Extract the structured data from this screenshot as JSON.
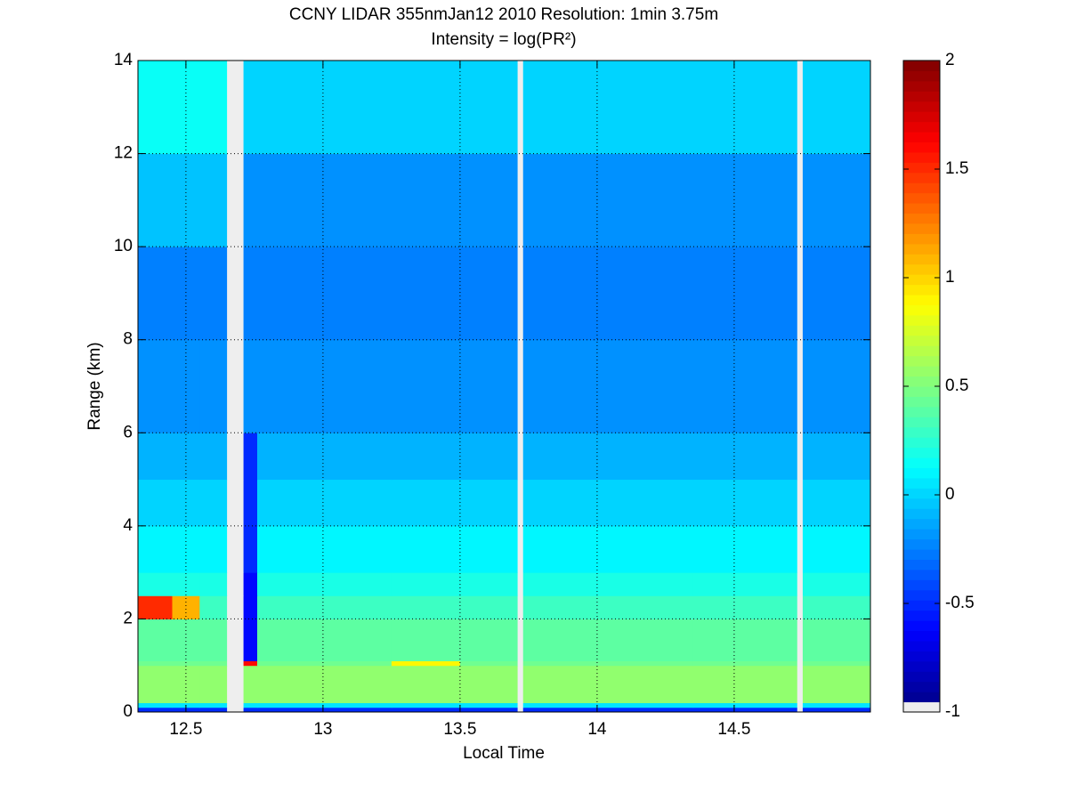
{
  "chart_data": {
    "type": "heatmap",
    "title": "CCNY LIDAR 355nmJan12 2010 Resolution: 1min 3.75m",
    "subtitle": "Intensity = log(PR²)",
    "x_label": "Local Time",
    "y_label": "Range (km)",
    "xlim": [
      12.325,
      14.997
    ],
    "ylim": [
      0,
      14
    ],
    "xticks": [
      12.5,
      13,
      13.5,
      14,
      14.5
    ],
    "yticks": [
      0,
      2,
      4,
      6,
      8,
      10,
      12,
      14
    ],
    "grid": true,
    "colormap": "jet",
    "clim": [
      -1,
      2
    ],
    "cticks": [
      -1,
      -0.5,
      0,
      0.5,
      1,
      1.5,
      2
    ],
    "null_color": "#eeeeee",
    "xbins": [
      12.325,
      12.45,
      12.55,
      12.65,
      12.71,
      12.76,
      13.0,
      13.25,
      13.5,
      13.71,
      13.73,
      14.0,
      14.35,
      14.73,
      14.75,
      14.997
    ],
    "ybins": [
      0,
      0.1,
      0.2,
      1.0,
      1.1,
      2.0,
      2.5,
      3,
      4,
      5,
      6,
      8,
      10,
      12,
      14
    ],
    "values": [
      [
        -0.5,
        -0.5,
        -0.5,
        null,
        -0.5,
        -0.5,
        -0.5,
        -0.5,
        -0.5,
        null,
        -0.5,
        -0.5,
        -0.5,
        null,
        -0.5
      ],
      [
        0.05,
        0.05,
        0.05,
        null,
        0.05,
        0.05,
        0.05,
        0.05,
        0.05,
        null,
        0.05,
        0.05,
        0.05,
        null,
        0.05
      ],
      [
        0.55,
        0.55,
        0.55,
        null,
        0.55,
        0.55,
        0.55,
        0.55,
        0.55,
        null,
        0.55,
        0.55,
        0.55,
        null,
        0.55
      ],
      [
        0.45,
        0.45,
        0.45,
        null,
        1.6,
        0.45,
        0.45,
        0.9,
        0.45,
        null,
        0.45,
        0.45,
        0.45,
        null,
        0.45
      ],
      [
        0.4,
        0.4,
        0.4,
        null,
        -0.6,
        0.4,
        0.4,
        0.4,
        0.4,
        null,
        0.4,
        0.4,
        0.4,
        null,
        0.4
      ],
      [
        1.5,
        1.1,
        0.3,
        null,
        -0.6,
        0.3,
        0.3,
        0.3,
        0.3,
        null,
        0.3,
        0.3,
        0.3,
        null,
        0.3
      ],
      [
        0.2,
        0.2,
        0.2,
        null,
        -0.6,
        0.2,
        0.2,
        0.2,
        0.2,
        null,
        0.2,
        0.2,
        0.2,
        null,
        0.2
      ],
      [
        0.1,
        0.1,
        0.1,
        null,
        -0.5,
        0.1,
        0.1,
        0.1,
        0.1,
        null,
        0.1,
        0.1,
        0.1,
        null,
        0.1
      ],
      [
        0.0,
        0.0,
        0.0,
        null,
        -0.5,
        0.0,
        0.0,
        0.0,
        0.0,
        null,
        0.0,
        0.0,
        0.0,
        null,
        0.0
      ],
      [
        -0.1,
        -0.1,
        -0.1,
        null,
        -0.5,
        -0.1,
        -0.1,
        -0.1,
        -0.1,
        null,
        -0.1,
        -0.1,
        -0.1,
        null,
        -0.1
      ],
      [
        -0.2,
        -0.2,
        -0.2,
        null,
        -0.2,
        -0.2,
        -0.2,
        -0.2,
        -0.2,
        null,
        -0.2,
        -0.2,
        -0.2,
        null,
        -0.2
      ],
      [
        -0.25,
        -0.25,
        -0.25,
        null,
        -0.25,
        -0.25,
        -0.25,
        -0.25,
        -0.25,
        null,
        -0.25,
        -0.25,
        -0.25,
        null,
        -0.25
      ],
      [
        -0.05,
        -0.05,
        -0.05,
        null,
        -0.2,
        -0.2,
        -0.2,
        -0.2,
        -0.2,
        null,
        -0.2,
        -0.2,
        -0.2,
        null,
        -0.2
      ],
      [
        0.15,
        0.15,
        0.15,
        null,
        0.0,
        0.0,
        0.0,
        0.0,
        0.0,
        null,
        0.0,
        0.0,
        0.0,
        null,
        0.0
      ]
    ]
  }
}
